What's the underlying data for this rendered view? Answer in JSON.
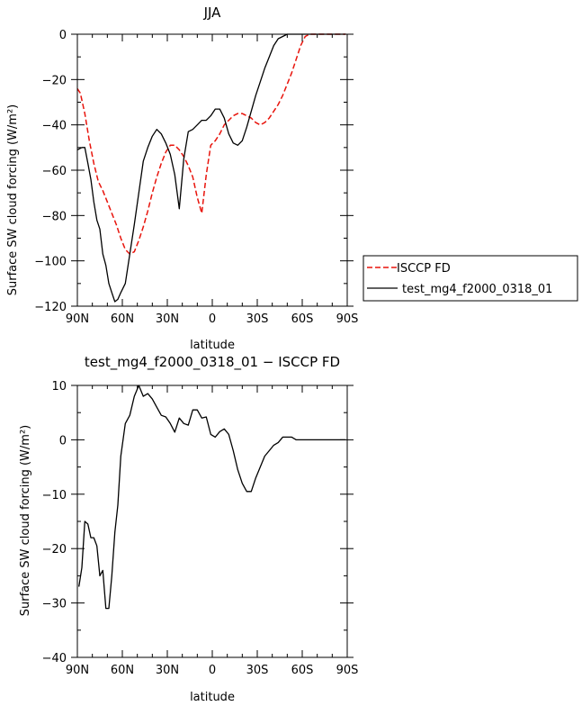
{
  "chart_data": [
    {
      "type": "line",
      "title": "JJA",
      "xlabel": "latitude",
      "ylabel": "Surface SW cloud forcing (W/m²)",
      "xlim": [
        90,
        -90
      ],
      "ylim": [
        -120,
        0
      ],
      "xticks": [
        {
          "value": 90,
          "label": "90N"
        },
        {
          "value": 60,
          "label": "60N"
        },
        {
          "value": 30,
          "label": "30N"
        },
        {
          "value": 0,
          "label": "0"
        },
        {
          "value": -30,
          "label": "30S"
        },
        {
          "value": -60,
          "label": "60S"
        },
        {
          "value": -90,
          "label": "90S"
        }
      ],
      "yticks": [
        {
          "value": 0,
          "label": "0"
        },
        {
          "value": -20,
          "label": "−20"
        },
        {
          "value": -40,
          "label": "−40"
        },
        {
          "value": -60,
          "label": "−60"
        },
        {
          "value": -80,
          "label": "−80"
        },
        {
          "value": -100,
          "label": "−100"
        },
        {
          "value": -120,
          "label": "−120"
        }
      ],
      "legend_position": "right",
      "series": [
        {
          "name": "ISCCP FD",
          "color": "#e8140c",
          "dash": true,
          "x": [
            90,
            88,
            85,
            82,
            79,
            76,
            73,
            70,
            67,
            64,
            61,
            58,
            55,
            52,
            49,
            46,
            43,
            40,
            37,
            34,
            31,
            28,
            25,
            22,
            19,
            16,
            13,
            10,
            7,
            4,
            1,
            -2,
            -5,
            -8,
            -11,
            -14,
            -17,
            -20,
            -23,
            -26,
            -29,
            -32,
            -35,
            -38,
            -41,
            -44,
            -47,
            -50,
            -53,
            -56,
            -59,
            -62,
            -65,
            -68,
            -71,
            -74,
            -77,
            -80,
            -83,
            -86,
            -89
          ],
          "y": [
            -24,
            -26,
            -35,
            -47,
            -57,
            -65,
            -69,
            -74,
            -79,
            -84,
            -90,
            -95,
            -97,
            -96,
            -91,
            -85,
            -78,
            -70,
            -63,
            -57,
            -52,
            -49,
            -49,
            -51,
            -54,
            -58,
            -63,
            -72,
            -79,
            -62,
            -49,
            -47,
            -44,
            -40,
            -38,
            -36,
            -35,
            -35,
            -36,
            -37,
            -39,
            -40,
            -39,
            -37,
            -34,
            -31,
            -27,
            -22,
            -17,
            -11,
            -5,
            -1,
            0,
            0,
            0,
            0,
            0,
            0,
            0,
            0,
            0
          ]
        },
        {
          "name": "test_mg4_f2000_0318_01",
          "color": "#000000",
          "dash": false,
          "x": [
            90,
            87,
            85,
            83,
            81,
            79,
            77,
            75,
            73,
            71,
            69,
            67,
            65,
            63,
            61,
            58,
            55,
            52,
            49,
            46,
            43,
            40,
            37,
            34,
            31,
            28,
            25,
            22,
            19,
            16,
            13,
            10,
            7,
            4,
            1,
            -2,
            -5,
            -8,
            -11,
            -14,
            -17,
            -20,
            -23,
            -26,
            -29,
            -32,
            -35,
            -38,
            -41,
            -44,
            -47,
            -50,
            -53,
            -56,
            -59,
            -62,
            -65,
            -68,
            -71,
            -74,
            -77,
            -80,
            -83,
            -86,
            -89
          ],
          "y": [
            -51,
            -50,
            -50,
            -57,
            -64,
            -74,
            -82,
            -86,
            -97,
            -102,
            -110,
            -114,
            -118,
            -117,
            -114,
            -110,
            -97,
            -84,
            -70,
            -56,
            -50,
            -45,
            -42,
            -44,
            -48,
            -53,
            -62,
            -77,
            -55,
            -43,
            -42,
            -40,
            -38,
            -38,
            -36,
            -33,
            -33,
            -37,
            -44,
            -48,
            -49,
            -47,
            -41,
            -34,
            -27,
            -21,
            -15,
            -10,
            -5,
            -2,
            -1,
            0,
            0,
            0,
            0,
            0,
            0,
            0,
            0,
            0,
            0,
            0,
            0,
            0,
            0
          ]
        }
      ]
    },
    {
      "type": "line",
      "title": "test_mg4_f2000_0318_01 − ISCCP FD",
      "xlabel": "latitude",
      "ylabel": "Surface SW cloud forcing (W/m²)",
      "xlim": [
        90,
        -90
      ],
      "ylim": [
        -40,
        10
      ],
      "xticks": [
        {
          "value": 90,
          "label": "90N"
        },
        {
          "value": 60,
          "label": "60N"
        },
        {
          "value": 30,
          "label": "30N"
        },
        {
          "value": 0,
          "label": "0"
        },
        {
          "value": -30,
          "label": "30S"
        },
        {
          "value": -60,
          "label": "60S"
        },
        {
          "value": -90,
          "label": "90S"
        }
      ],
      "yticks": [
        {
          "value": 10,
          "label": "10"
        },
        {
          "value": 0,
          "label": "0"
        },
        {
          "value": -10,
          "label": "−10"
        },
        {
          "value": -20,
          "label": "−20"
        },
        {
          "value": -30,
          "label": "−30"
        },
        {
          "value": -40,
          "label": "−40"
        }
      ],
      "series": [
        {
          "color": "#000000",
          "dash": false,
          "x": [
            89,
            87,
            85,
            83,
            81,
            79,
            77,
            75,
            73,
            71,
            69,
            67,
            65,
            63,
            61,
            58,
            55,
            52,
            49,
            46,
            43,
            40,
            37,
            34,
            31,
            28,
            25,
            22,
            19,
            16,
            13,
            10,
            7,
            4,
            1,
            -2,
            -5,
            -8,
            -11,
            -14,
            -17,
            -20,
            -23,
            -26,
            -29,
            -32,
            -35,
            -38,
            -41,
            -44,
            -47,
            -50,
            -53,
            -56,
            -59,
            -62,
            -65,
            -68,
            -71,
            -74,
            -77,
            -80,
            -83,
            -86,
            -89
          ],
          "y": [
            -27,
            -23.5,
            -15,
            -15.5,
            -18,
            -18,
            -19.5,
            -25,
            -24,
            -31,
            -31,
            -25,
            -17,
            -12,
            -3,
            3,
            4.5,
            8,
            10,
            8,
            8.5,
            7.5,
            6,
            4.5,
            4.2,
            3,
            1.4,
            4,
            3,
            2.7,
            5.5,
            5.5,
            4,
            4.2,
            1,
            0.5,
            1.5,
            2,
            1,
            -2,
            -5.5,
            -8,
            -9.5,
            -9.5,
            -7,
            -5,
            -3,
            -2,
            -1,
            -0.5,
            0.5,
            0.5,
            0.5,
            0,
            0,
            0,
            0,
            0,
            0,
            0,
            0,
            0,
            0,
            0,
            0
          ]
        }
      ]
    }
  ]
}
